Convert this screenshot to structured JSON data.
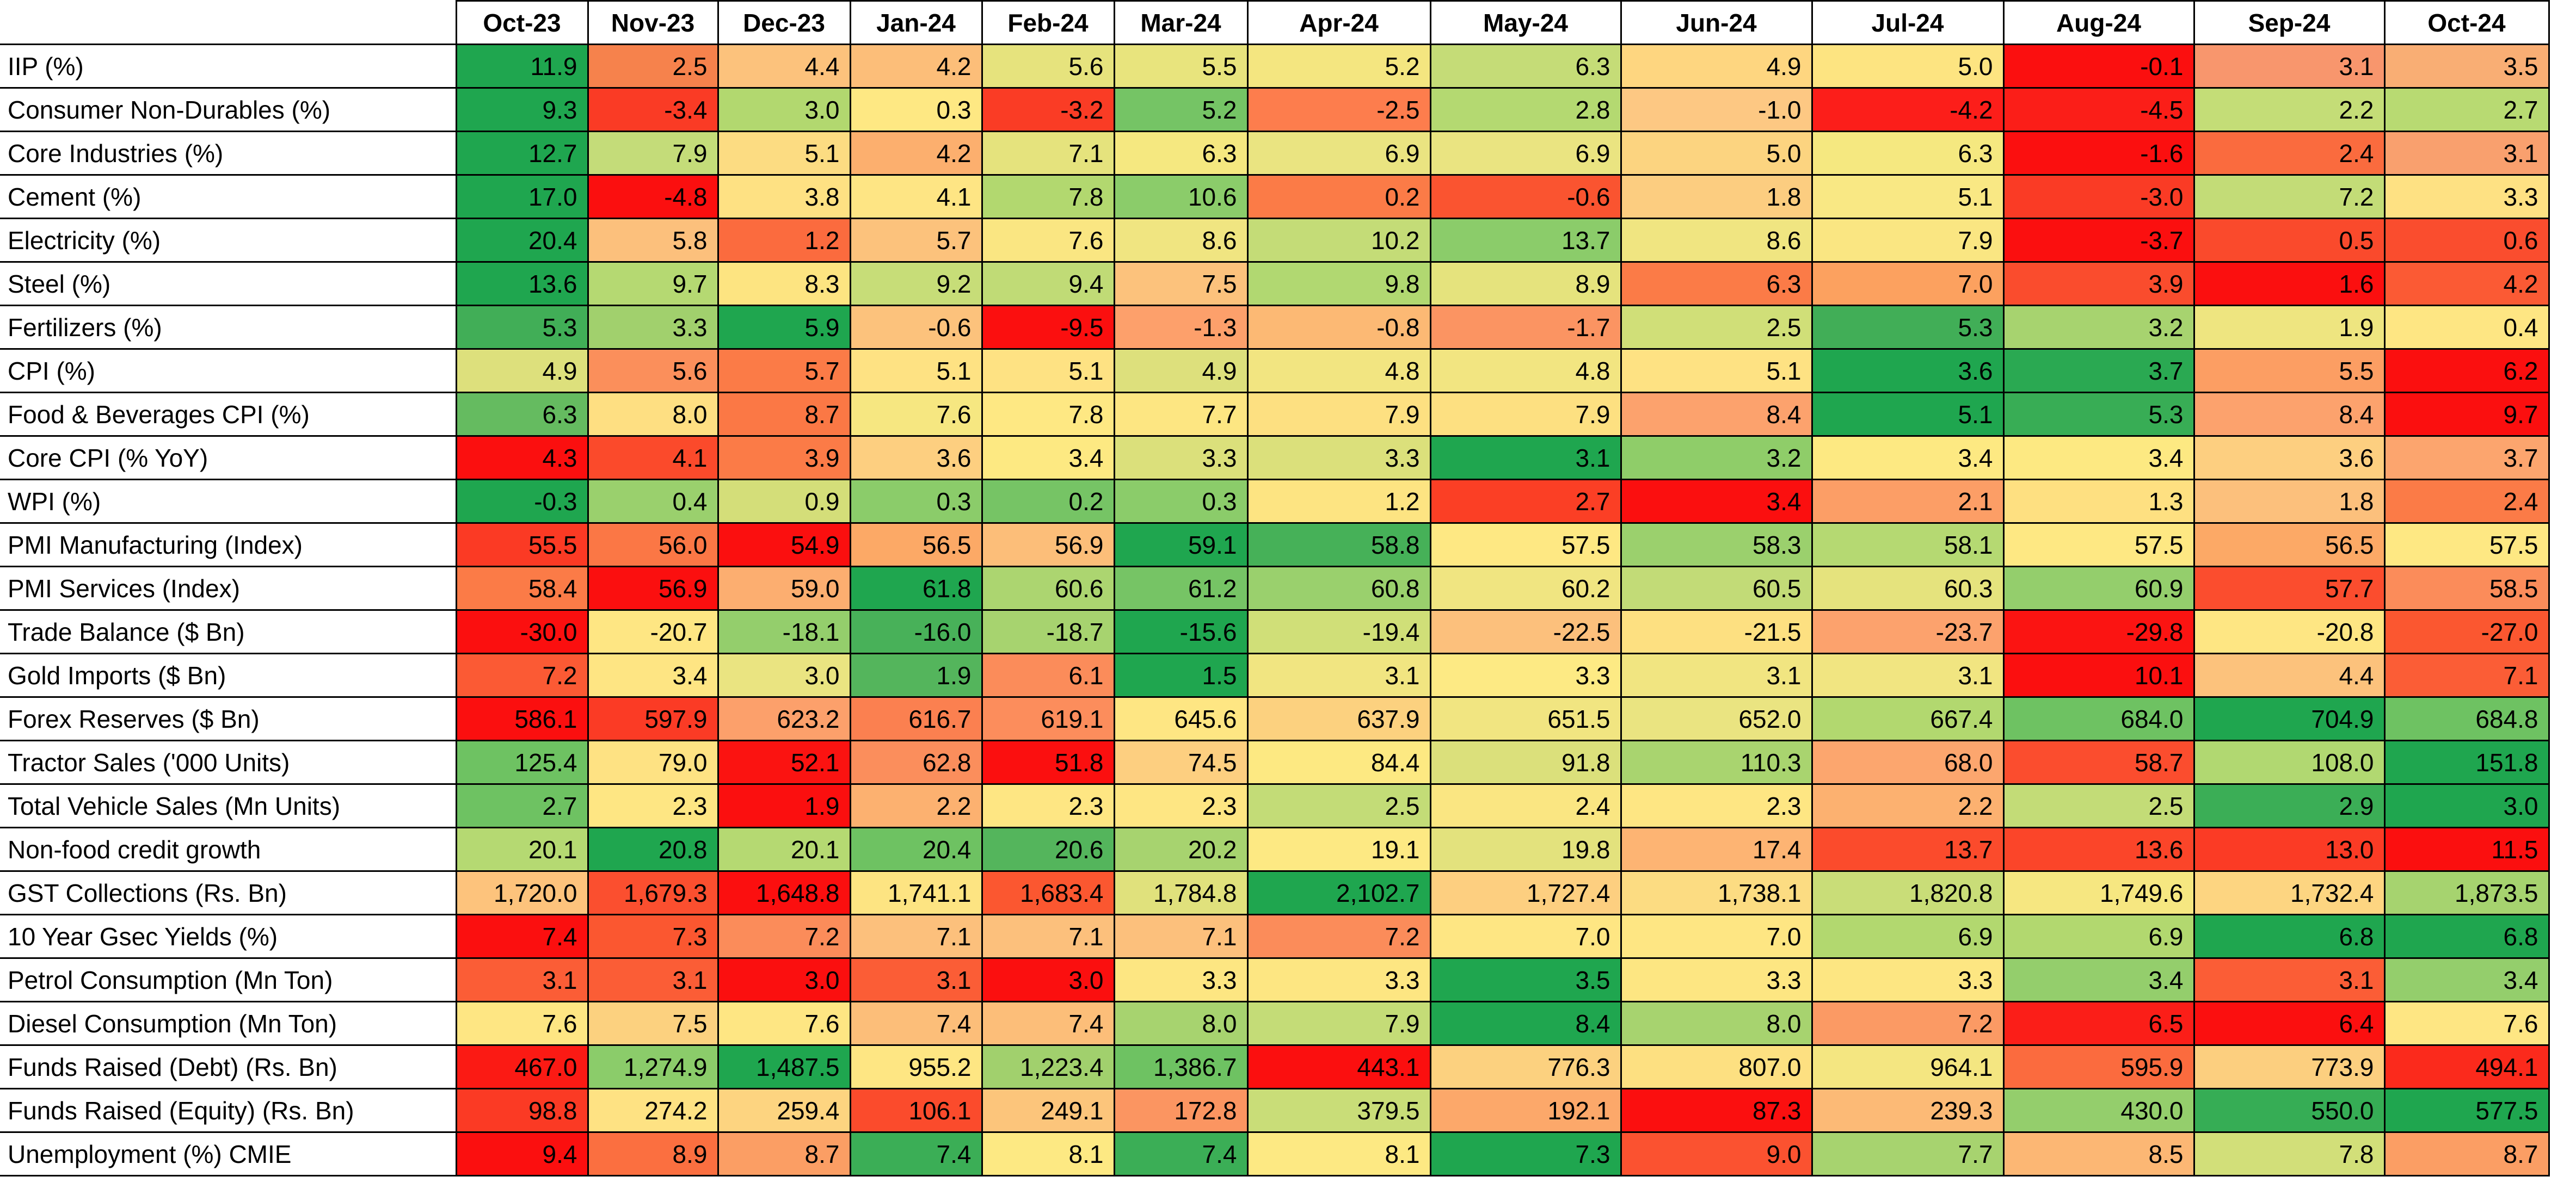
{
  "columns": [
    "Oct-23",
    "Nov-23",
    "Dec-23",
    "Jan-24",
    "Feb-24",
    "Mar-24",
    "Apr-24",
    "May-24",
    "Jun-24",
    "Jul-24",
    "Aug-24",
    "Sep-24",
    "Oct-24"
  ],
  "rows": [
    {
      "label": "IIP (%)",
      "values": [
        "11.9",
        "2.5",
        "4.4",
        "4.2",
        "5.6",
        "5.5",
        "5.2",
        "6.3",
        "4.9",
        "5.0",
        "-0.1",
        "3.1",
        "3.5"
      ],
      "colors": [
        "#1fa64f",
        "#f6824c",
        "#fcc27c",
        "#fcbe79",
        "#e6e37d",
        "#e8e47d",
        "#f4e680",
        "#c5dc77",
        "#fed680",
        "#fde481",
        "#fb0f0f",
        "#f8966d",
        "#f9ae74"
      ]
    },
    {
      "label": "Consumer Non-Durables (%)",
      "values": [
        "9.3",
        "-3.4",
        "3.0",
        "0.3",
        "-3.2",
        "5.2",
        "-2.5",
        "2.8",
        "-1.0",
        "-4.2",
        "-4.5",
        "2.2",
        "2.7"
      ],
      "colors": [
        "#1fa64f",
        "#fa3b25",
        "#b2d86f",
        "#fee883",
        "#fa3c25",
        "#75c465",
        "#fd7d4d",
        "#b4d971",
        "#fdc883",
        "#fc1e1a",
        "#fb1e18",
        "#c4dd77",
        "#b8da72"
      ]
    },
    {
      "label": "Core Industries (%)",
      "values": [
        "12.7",
        "7.9",
        "5.1",
        "4.2",
        "7.1",
        "6.3",
        "6.9",
        "6.9",
        "5.0",
        "6.3",
        "-1.6",
        "2.4",
        "3.1"
      ],
      "colors": [
        "#1fa64f",
        "#c4dc79",
        "#fcdc82",
        "#fcaf6e",
        "#e5e37d",
        "#f5e880",
        "#eae481",
        "#eae481",
        "#fcd480",
        "#f5e880",
        "#fb0f0f",
        "#fa6b3e",
        "#f9a06e"
      ]
    },
    {
      "label": "Cement (%)",
      "values": [
        "17.0",
        "-4.8",
        "3.8",
        "4.1",
        "7.8",
        "10.6",
        "0.2",
        "-0.6",
        "1.8",
        "5.1",
        "-3.0",
        "7.2",
        "3.3"
      ],
      "colors": [
        "#1fa64f",
        "#fb0f0f",
        "#fee183",
        "#fee584",
        "#b2d86f",
        "#8bcc6a",
        "#fb7b47",
        "#fa5430",
        "#fccd80",
        "#f9e884",
        "#fa3b25",
        "#c3dc77",
        "#fee183"
      ]
    },
    {
      "label": "Electricity (%)",
      "values": [
        "20.4",
        "5.8",
        "1.2",
        "5.7",
        "7.6",
        "8.6",
        "10.2",
        "13.7",
        "8.6",
        "7.9",
        "-3.7",
        "0.5",
        "0.6"
      ],
      "colors": [
        "#1fa64f",
        "#fcc07c",
        "#fb6b3e",
        "#fcc27c",
        "#fae682",
        "#f0e581",
        "#c4dc77",
        "#8bcc6a",
        "#f0e581",
        "#fae682",
        "#fb0f0f",
        "#fa4a2c",
        "#fa4d2e"
      ]
    },
    {
      "label": "Steel (%)",
      "values": [
        "13.6",
        "9.7",
        "8.3",
        "9.2",
        "9.4",
        "7.5",
        "9.8",
        "8.9",
        "6.3",
        "7.0",
        "3.9",
        "1.6",
        "4.2"
      ],
      "colors": [
        "#1fa64f",
        "#b5d972",
        "#fde481",
        "#c7dd78",
        "#c0db76",
        "#fcc27c",
        "#b1d871",
        "#e5e37d",
        "#fb7b47",
        "#fca15f",
        "#fa4c2d",
        "#fb0f0f",
        "#fb5a34"
      ]
    },
    {
      "label": "Fertilizers (%)",
      "values": [
        "5.3",
        "3.3",
        "5.9",
        "-0.6",
        "-9.5",
        "-1.3",
        "-0.8",
        "-1.7",
        "2.5",
        "5.3",
        "3.2",
        "1.9",
        "0.4"
      ],
      "colors": [
        "#41ae57",
        "#a1d06d",
        "#1fa64f",
        "#fcc27c",
        "#fb0f0f",
        "#fda06b",
        "#fcb974",
        "#fb9462",
        "#d0df78",
        "#41ae57",
        "#a7d36f",
        "#eee580",
        "#fee683"
      ]
    },
    {
      "label": "CPI (%)",
      "values": [
        "4.9",
        "5.6",
        "5.7",
        "5.1",
        "5.1",
        "4.9",
        "4.8",
        "4.8",
        "5.1",
        "3.6",
        "3.7",
        "5.5",
        "6.2"
      ],
      "colors": [
        "#dde07c",
        "#fb8f5b",
        "#fb7b47",
        "#fee283",
        "#fee283",
        "#dde07c",
        "#f2e581",
        "#f2e581",
        "#fee283",
        "#1fa64f",
        "#2aa952",
        "#fc9e63",
        "#fb0f0f"
      ]
    },
    {
      "label": "Food & Beverages CPI (%)",
      "values": [
        "6.3",
        "8.0",
        "8.7",
        "7.6",
        "7.8",
        "7.7",
        "7.9",
        "7.9",
        "8.4",
        "5.1",
        "5.3",
        "8.4",
        "9.7"
      ],
      "colors": [
        "#65bb60",
        "#fedf82",
        "#fb7845",
        "#f6e781",
        "#fee883",
        "#fde682",
        "#fde081",
        "#fde081",
        "#fca26d",
        "#1fa64f",
        "#38ad55",
        "#fca26d",
        "#fb0f0f"
      ]
    },
    {
      "label": "Core CPI (% YoY)",
      "values": [
        "4.3",
        "4.1",
        "3.9",
        "3.6",
        "3.4",
        "3.3",
        "3.3",
        "3.1",
        "3.2",
        "3.4",
        "3.4",
        "3.6",
        "3.7"
      ],
      "colors": [
        "#fb0f0f",
        "#fb4a2b",
        "#fb7b47",
        "#fdcf80",
        "#fde982",
        "#dbe07b",
        "#dbe07b",
        "#1fa64f",
        "#8fcd69",
        "#fde982",
        "#fde982",
        "#fdcf80",
        "#fca56e"
      ]
    },
    {
      "label": "WPI (%)",
      "values": [
        "-0.3",
        "0.4",
        "0.9",
        "0.3",
        "0.2",
        "0.3",
        "1.2",
        "2.7",
        "3.4",
        "2.1",
        "1.3",
        "1.8",
        "2.4"
      ],
      "colors": [
        "#1fa64f",
        "#9ad06d",
        "#d4de79",
        "#8bcc6a",
        "#76c465",
        "#8bcc6a",
        "#fde482",
        "#fb3f25",
        "#fb0f0f",
        "#fc9e66",
        "#fee081",
        "#fcc07c",
        "#fb7b47"
      ]
    },
    {
      "label": "PMI Manufacturing (Index)",
      "values": [
        "55.5",
        "56.0",
        "54.9",
        "56.5",
        "56.9",
        "59.1",
        "58.8",
        "57.5",
        "58.3",
        "58.1",
        "57.5",
        "56.5",
        "57.5"
      ],
      "colors": [
        "#fb3a24",
        "#fb7745",
        "#fb0f0f",
        "#fca966",
        "#fcbe79",
        "#1fa64f",
        "#46b158",
        "#fee883",
        "#9bd06d",
        "#b5d972",
        "#fee883",
        "#fca966",
        "#fee883"
      ]
    },
    {
      "label": "PMI Services (Index)",
      "values": [
        "58.4",
        "56.9",
        "59.0",
        "61.8",
        "60.6",
        "61.2",
        "60.8",
        "60.2",
        "60.5",
        "60.3",
        "60.9",
        "57.7",
        "58.5"
      ],
      "colors": [
        "#fb7b47",
        "#fb0f0f",
        "#fcae70",
        "#1fa64f",
        "#acd570",
        "#76c465",
        "#9ad06d",
        "#f0e581",
        "#c2db77",
        "#e5e37d",
        "#94ce6c",
        "#fb4d2e",
        "#fb8c5a"
      ]
    },
    {
      "label": "Trade Balance ($ Bn)",
      "values": [
        "-30.0",
        "-20.7",
        "-18.1",
        "-16.0",
        "-18.7",
        "-15.6",
        "-19.4",
        "-22.5",
        "-21.5",
        "-23.7",
        "-29.8",
        "-20.8",
        "-27.0"
      ],
      "colors": [
        "#fb0f0f",
        "#fee683",
        "#94ce6c",
        "#48b159",
        "#a7d36f",
        "#1fa64f",
        "#d0df78",
        "#fcc07c",
        "#fde081",
        "#fca26d",
        "#fb1412",
        "#fee683",
        "#fb5730"
      ]
    },
    {
      "label": "Gold Imports ($ Bn)",
      "values": [
        "7.2",
        "3.4",
        "3.0",
        "1.9",
        "6.1",
        "1.5",
        "3.1",
        "3.3",
        "3.1",
        "3.1",
        "10.1",
        "4.4",
        "7.1"
      ],
      "colors": [
        "#fb5a34",
        "#fee583",
        "#eae481",
        "#54b55c",
        "#fb8c5a",
        "#1fa64f",
        "#f1e581",
        "#fdea84",
        "#f1e581",
        "#f1e581",
        "#fb0f0f",
        "#fcc27c",
        "#fb5d36"
      ]
    },
    {
      "label": "Forex Reserves ($ Bn)",
      "values": [
        "586.1",
        "597.9",
        "623.2",
        "616.7",
        "619.1",
        "645.6",
        "637.9",
        "651.5",
        "652.0",
        "667.4",
        "684.0",
        "704.9",
        "684.8"
      ],
      "colors": [
        "#fb0f0f",
        "#fb3b25",
        "#fca06b",
        "#fb8050",
        "#fc8d5c",
        "#fee683",
        "#fcd17f",
        "#f1e581",
        "#eae481",
        "#b2d86f",
        "#6ec262",
        "#1fa64f",
        "#6ec262"
      ]
    },
    {
      "label": "Tractor Sales ('000 Units)",
      "values": [
        "125.4",
        "79.0",
        "52.1",
        "62.8",
        "51.8",
        "74.5",
        "84.4",
        "91.8",
        "110.3",
        "68.0",
        "58.7",
        "108.0",
        "151.8"
      ],
      "colors": [
        "#6ec262",
        "#fee283",
        "#fb1311",
        "#fb8e5c",
        "#fb0f0f",
        "#fdcf80",
        "#fde982",
        "#dbe07b",
        "#a9d46f",
        "#fca66e",
        "#fb4d2e",
        "#b1d871",
        "#1fa64f"
      ]
    },
    {
      "label": "Total Vehicle Sales (Mn Units)",
      "values": [
        "2.7",
        "2.3",
        "1.9",
        "2.2",
        "2.3",
        "2.3",
        "2.5",
        "2.4",
        "2.3",
        "2.2",
        "2.5",
        "2.9",
        "3.0"
      ],
      "colors": [
        "#6ec262",
        "#fee683",
        "#fb0f0f",
        "#fcb170",
        "#fee683",
        "#fee683",
        "#c3dc77",
        "#fae682",
        "#fee683",
        "#fcb170",
        "#c3dc77",
        "#3bae56",
        "#1fa64f"
      ]
    },
    {
      "label": "Non-food credit growth",
      "values": [
        "20.1",
        "20.8",
        "20.1",
        "20.4",
        "20.6",
        "20.2",
        "19.1",
        "19.8",
        "17.4",
        "13.7",
        "13.6",
        "13.0",
        "11.5"
      ],
      "colors": [
        "#b5d972",
        "#1fa64f",
        "#b5d972",
        "#6ec262",
        "#54b55c",
        "#a7d36f",
        "#fde983",
        "#e3e27d",
        "#fdb473",
        "#fb4b2c",
        "#fb4529",
        "#fb3b25",
        "#fb0f0f"
      ]
    },
    {
      "label": "GST Collections (Rs. Bn)",
      "values": [
        "1,720.0",
        "1,679.3",
        "1,648.8",
        "1,741.1",
        "1,683.4",
        "1,784.8",
        "2,102.7",
        "1,727.4",
        "1,738.1",
        "1,820.8",
        "1,749.6",
        "1,732.4",
        "1,873.5"
      ],
      "colors": [
        "#fdc37c",
        "#fb4f2f",
        "#fb0f0f",
        "#fde482",
        "#fb5730",
        "#e0e17c",
        "#1fa64f",
        "#fdcf80",
        "#fcdc82",
        "#c9dd78",
        "#f6e781",
        "#fdd581",
        "#a6d36f"
      ]
    },
    {
      "label": "10 Year Gsec Yields (%)",
      "values": [
        "7.4",
        "7.3",
        "7.2",
        "7.1",
        "7.1",
        "7.1",
        "7.2",
        "7.0",
        "7.0",
        "6.9",
        "6.9",
        "6.8",
        "6.8"
      ],
      "colors": [
        "#fb0f0f",
        "#fb5730",
        "#fb8c5a",
        "#fcc07c",
        "#fcc07c",
        "#fcc07c",
        "#fb8c5a",
        "#fee683",
        "#fee683",
        "#b2d86f",
        "#b2d86f",
        "#1fa64f",
        "#1fa64f"
      ]
    },
    {
      "label": "Petrol Consumption (Mn Ton)",
      "values": [
        "3.1",
        "3.1",
        "3.0",
        "3.1",
        "3.0",
        "3.3",
        "3.3",
        "3.5",
        "3.3",
        "3.3",
        "3.4",
        "3.1",
        "3.4"
      ],
      "colors": [
        "#fb5d36",
        "#fb5d36",
        "#fb0f0f",
        "#fb5d36",
        "#fb0f0f",
        "#fde682",
        "#fde682",
        "#1fa64f",
        "#fde682",
        "#fde682",
        "#94ce6c",
        "#fb5d36",
        "#94ce6c"
      ]
    },
    {
      "label": "Diesel Consumption (Mn Ton)",
      "values": [
        "7.6",
        "7.5",
        "7.6",
        "7.4",
        "7.4",
        "8.0",
        "7.9",
        "8.4",
        "8.0",
        "7.2",
        "6.5",
        "6.4",
        "7.6"
      ],
      "colors": [
        "#fee683",
        "#fcd17f",
        "#fee683",
        "#fcbe79",
        "#fcbe79",
        "#a7d36f",
        "#c4dc77",
        "#1fa64f",
        "#a7d36f",
        "#fb9a64",
        "#fb1e18",
        "#fb0f0f",
        "#fee683"
      ]
    },
    {
      "label": "Funds Raised (Debt) (Rs. Bn)",
      "values": [
        "467.0",
        "1,274.9",
        "1,487.5",
        "955.2",
        "1,223.4",
        "1,386.7",
        "443.1",
        "776.3",
        "807.0",
        "964.1",
        "595.9",
        "773.9",
        "494.1"
      ],
      "colors": [
        "#fb1a14",
        "#8bcc6a",
        "#1fa64f",
        "#fee683",
        "#a1d06d",
        "#6ec262",
        "#fb0f0f",
        "#fcd17f",
        "#fde081",
        "#f4e681",
        "#fb6b3e",
        "#fccf7f",
        "#fb2a1c"
      ]
    },
    {
      "label": "Funds Raised (Equity) (Rs. Bn)",
      "values": [
        "98.8",
        "274.2",
        "259.4",
        "106.1",
        "249.1",
        "172.8",
        "379.5",
        "192.1",
        "87.3",
        "239.3",
        "430.0",
        "550.0",
        "577.5"
      ],
      "colors": [
        "#fb3a24",
        "#fee283",
        "#fdd480",
        "#fb4b2c",
        "#fcc57b",
        "#fb9561",
        "#c9dd78",
        "#fca86a",
        "#fb0f0f",
        "#fcba76",
        "#94ce6c",
        "#36ad55",
        "#1fa64f"
      ]
    },
    {
      "label": "Unemployment (%) CMIE",
      "values": [
        "9.4",
        "8.9",
        "8.7",
        "7.4",
        "8.1",
        "7.4",
        "8.1",
        "7.3",
        "9.0",
        "7.7",
        "8.5",
        "7.8",
        "8.7"
      ],
      "colors": [
        "#fb0f0f",
        "#fb6f40",
        "#fb9e64",
        "#3bae56",
        "#fde983",
        "#3bae56",
        "#fde983",
        "#1fa64f",
        "#fb5230",
        "#a7d36f",
        "#fcb774",
        "#d2df79",
        "#fb9e64"
      ]
    }
  ]
}
